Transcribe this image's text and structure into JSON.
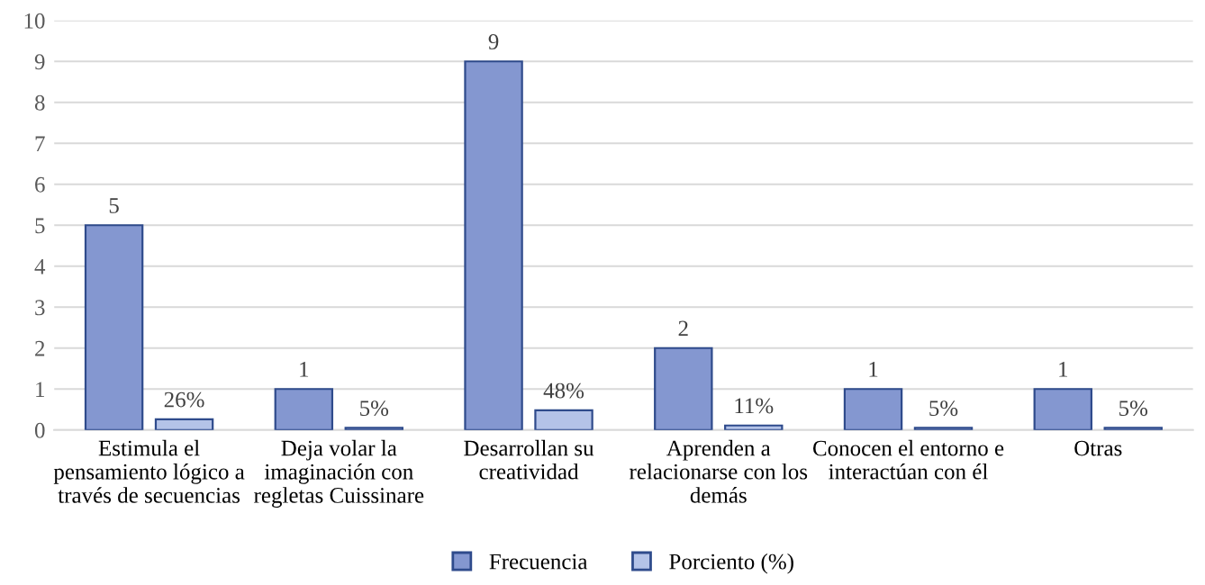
{
  "chart_data": {
    "type": "bar",
    "categories": [
      "Estimula el\npensamiento lógico a\ntravés de secuencias",
      "Deja volar la\nimaginación con\nregletas Cuissinare",
      "Desarrollan su\ncreatividad",
      "Aprenden a\nrelacionarse con los\ndemás",
      "Conocen el entorno e\ninteractúan con él",
      "Otras"
    ],
    "series": [
      {
        "name": "Frecuencia",
        "color": "#8497d0",
        "values": [
          5,
          1,
          9,
          2,
          1,
          1
        ],
        "value_labels": [
          "5",
          "1",
          "9",
          "2",
          "1",
          "1"
        ]
      },
      {
        "name": "Porciento (%)",
        "color": "#b4c3e8",
        "values": [
          0.26,
          0.05,
          0.48,
          0.11,
          0.05,
          0.05
        ],
        "value_labels": [
          "26%",
          "5%",
          "48%",
          "11%",
          "5%",
          "5%"
        ]
      }
    ],
    "ylim": [
      0,
      10
    ],
    "yticks": [
      0,
      1,
      2,
      3,
      4,
      5,
      6,
      7,
      8,
      9,
      10
    ],
    "grid": "y",
    "legend": "bottom"
  }
}
